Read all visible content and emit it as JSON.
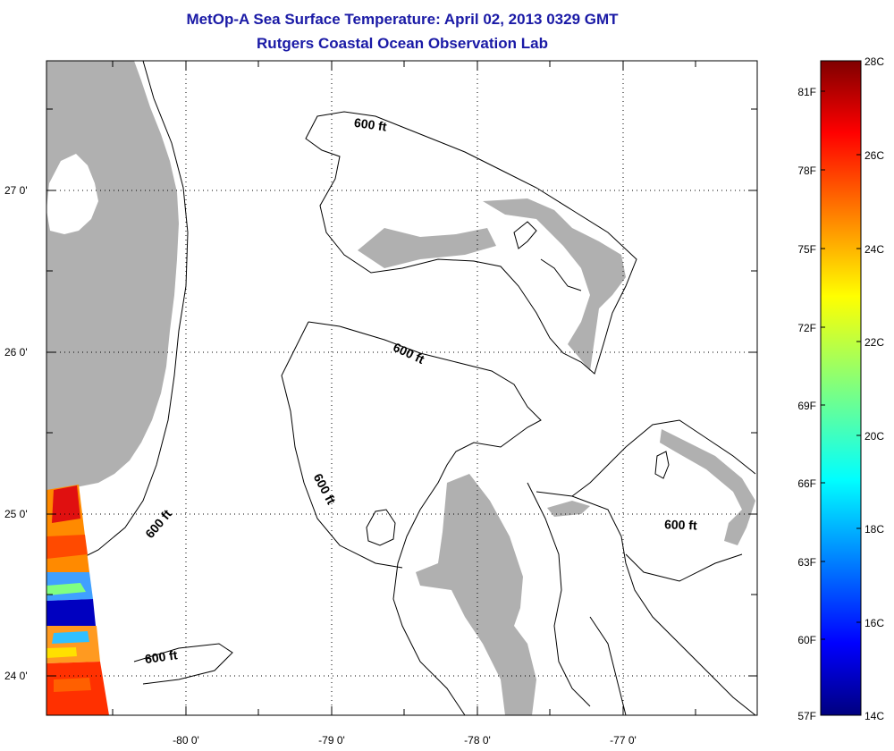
{
  "title_line1": "MetOp-A Sea Surface Temperature:  April 02, 2013 0329 GMT",
  "title_line2": "Rutgers Coastal Ocean Observation Lab",
  "map": {
    "x_ticks": [
      "-80 0'",
      "-79 0'",
      "-78 0'",
      "-77 0'"
    ],
    "y_ticks": [
      "27 0'",
      "26 0'",
      "25 0'",
      "24 0'"
    ],
    "contour_labels": [
      "600 ft",
      "600 ft",
      "600 ft",
      "600 ft",
      "600 ft",
      "600 ft"
    ],
    "land_color": "#b0b0b0",
    "grid": "dotted"
  },
  "colorbar": {
    "celsius_labels": [
      "28C",
      "26C",
      "24C",
      "22C",
      "20C",
      "18C",
      "16C",
      "14C"
    ],
    "fahrenheit_labels": [
      "81F",
      "78F",
      "75F",
      "72F",
      "69F",
      "66F",
      "63F",
      "60F",
      "57F"
    ],
    "colormap": "jet"
  }
}
